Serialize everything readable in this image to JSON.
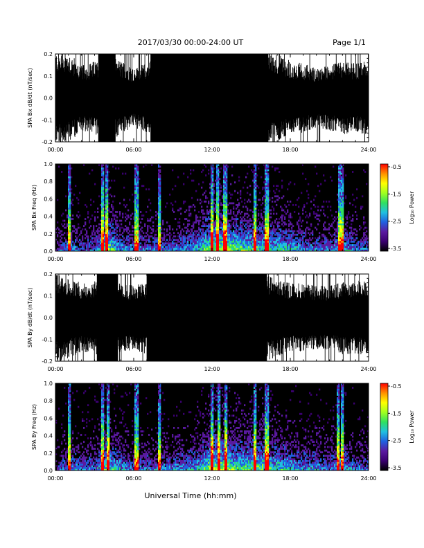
{
  "header": {
    "title": "2017/03/30  00:00-24:00 UT",
    "page": "Page 1/1"
  },
  "footer": {
    "xlabel": "Universal Time (hh:mm)"
  },
  "colors": {
    "trace": "#000000",
    "background": "#ffffff",
    "colorbar": [
      "#000000",
      "#3a0070",
      "#5a1aa0",
      "#2060e0",
      "#20c0e0",
      "#30e060",
      "#a0ff20",
      "#ffff00",
      "#ff9000",
      "#ff0000"
    ]
  },
  "chart_data": [
    {
      "type": "line",
      "name": "bx_waveform",
      "ylabel": "SPA Bx dB/dt (nT/sec)",
      "ylim": [
        -0.2,
        0.2
      ],
      "yticks": [
        "-0.2",
        "-0.1",
        "0.0",
        "0.1",
        "0.2"
      ],
      "xlim": [
        "00:00",
        "24:00"
      ],
      "xticks": [
        "00:00",
        "06:00",
        "12:00",
        "18:00",
        "24:00"
      ],
      "saturated_intervals_hours": [
        [
          3.3,
          4.6
        ],
        [
          7.3,
          10.6
        ],
        [
          10.6,
          16.3
        ]
      ],
      "amplitude_hours": [
        0,
        1,
        2,
        3,
        4,
        5,
        6,
        7,
        8,
        9,
        10,
        11,
        12,
        13,
        14,
        15,
        16,
        17,
        18,
        19,
        20,
        21,
        22,
        23,
        24
      ],
      "amplitude_values": [
        0.2,
        0.2,
        0.14,
        0.16,
        0.2,
        0.16,
        0.13,
        0.15,
        0.2,
        0.2,
        0.2,
        0.2,
        0.2,
        0.2,
        0.2,
        0.2,
        0.2,
        0.2,
        0.16,
        0.15,
        0.13,
        0.14,
        0.16,
        0.15,
        0.16
      ]
    },
    {
      "type": "heatmap",
      "name": "bx_spectrogram",
      "ylabel": "SPA Bx Freq (Hz)",
      "ylim": [
        0.0,
        1.0
      ],
      "yticks": [
        "0.0",
        "0.2",
        "0.4",
        "0.6",
        "0.8",
        "1.0"
      ],
      "xlim": [
        "00:00",
        "24:00"
      ],
      "xticks": [
        "00:00",
        "06:00",
        "12:00",
        "18:00",
        "24:00"
      ],
      "colorbar_label": "Log₁₀ Power",
      "colorbar_range": [
        -3.5,
        -0.5
      ],
      "colorbar_ticks": [
        "-0.5",
        "-1.5",
        "-2.5",
        "-3.5"
      ],
      "activity_hours": [
        0,
        1,
        2,
        3,
        4,
        5,
        6,
        7,
        8,
        9,
        10,
        11,
        12,
        13,
        14,
        15,
        16,
        17,
        18,
        19,
        20,
        21,
        22,
        23,
        24
      ],
      "activity_values": [
        0.2,
        0.35,
        0.25,
        0.3,
        0.55,
        0.35,
        0.3,
        0.3,
        0.3,
        0.3,
        0.35,
        0.4,
        0.6,
        0.55,
        0.5,
        0.5,
        0.45,
        0.45,
        0.4,
        0.35,
        0.3,
        0.3,
        0.4,
        0.3,
        0.25
      ],
      "burst_hours": [
        1.1,
        3.6,
        3.9,
        6.2,
        8.0,
        12.0,
        12.4,
        13.0,
        15.3,
        16.2,
        21.8,
        22.0
      ]
    },
    {
      "type": "line",
      "name": "by_waveform",
      "ylabel": "SPA By dB/dt (nT/sec)",
      "ylim": [
        -0.2,
        0.2
      ],
      "yticks": [
        "-0.2",
        "-0.1",
        "0.0",
        "0.1",
        "0.2"
      ],
      "xlim": [
        "00:00",
        "24:00"
      ],
      "xticks": [
        "00:00",
        "06:00",
        "12:00",
        "18:00",
        "24:00"
      ],
      "saturated_intervals_hours": [
        [
          3.2,
          4.8
        ],
        [
          7.0,
          16.2
        ]
      ],
      "amplitude_hours": [
        0,
        1,
        2,
        3,
        4,
        5,
        6,
        7,
        8,
        9,
        10,
        11,
        12,
        13,
        14,
        15,
        16,
        17,
        18,
        19,
        20,
        21,
        22,
        23,
        24
      ],
      "amplitude_values": [
        0.2,
        0.18,
        0.15,
        0.16,
        0.2,
        0.15,
        0.14,
        0.16,
        0.2,
        0.2,
        0.2,
        0.2,
        0.2,
        0.2,
        0.2,
        0.2,
        0.2,
        0.17,
        0.15,
        0.15,
        0.14,
        0.14,
        0.16,
        0.16,
        0.17
      ]
    },
    {
      "type": "heatmap",
      "name": "by_spectrogram",
      "ylabel": "SPA By Freq (Hz)",
      "ylim": [
        0.0,
        1.0
      ],
      "yticks": [
        "0.0",
        "0.2",
        "0.4",
        "0.6",
        "0.8",
        "1.0"
      ],
      "xlim": [
        "00:00",
        "24:00"
      ],
      "xticks": [
        "00:00",
        "06:00",
        "12:00",
        "18:00",
        "24:00"
      ],
      "colorbar_label": "Log₁₀ Power",
      "colorbar_range": [
        -3.5,
        -0.5
      ],
      "colorbar_ticks": [
        "-0.5",
        "-1.5",
        "-2.5",
        "-3.5"
      ],
      "activity_hours": [
        0,
        1,
        2,
        3,
        4,
        5,
        6,
        7,
        8,
        9,
        10,
        11,
        12,
        13,
        14,
        15,
        16,
        17,
        18,
        19,
        20,
        21,
        22,
        23,
        24
      ],
      "activity_values": [
        0.25,
        0.35,
        0.3,
        0.3,
        0.5,
        0.35,
        0.3,
        0.3,
        0.3,
        0.3,
        0.35,
        0.4,
        0.6,
        0.55,
        0.5,
        0.5,
        0.5,
        0.45,
        0.4,
        0.35,
        0.35,
        0.3,
        0.4,
        0.3,
        0.3
      ],
      "burst_hours": [
        1.1,
        3.6,
        4.0,
        6.2,
        8.0,
        12.0,
        12.5,
        13.1,
        15.3,
        16.2,
        21.7,
        22.0
      ]
    }
  ]
}
